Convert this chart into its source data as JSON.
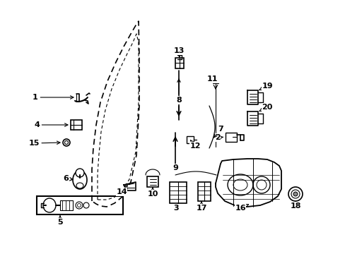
{
  "bg_color": "#ffffff",
  "line_color": "#000000",
  "fig_width": 4.89,
  "fig_height": 3.6,
  "dpi": 100,
  "door_outer": {
    "x": [
      195,
      192,
      188,
      182,
      175,
      168,
      162,
      158,
      156,
      156,
      158,
      163,
      170,
      178,
      188,
      198,
      208,
      218,
      226,
      230,
      232,
      232,
      230,
      226,
      218,
      208,
      198,
      195
    ],
    "y": [
      290,
      282,
      272,
      260,
      245,
      228,
      210,
      190,
      168,
      148,
      132,
      118,
      108,
      100,
      95,
      93,
      93,
      95,
      100,
      107,
      115,
      200,
      210,
      220,
      228,
      238,
      248,
      260
    ]
  },
  "door_inner": {
    "x": [
      195,
      192,
      188,
      183,
      177,
      171,
      165,
      162,
      160,
      160,
      162,
      167,
      173,
      180,
      189,
      198,
      207,
      216,
      223,
      226,
      228,
      228,
      226,
      223,
      216,
      207,
      198,
      195
    ],
    "y": [
      286,
      278,
      269,
      257,
      243,
      226,
      210,
      192,
      172,
      154,
      138,
      125,
      115,
      108,
      103,
      101,
      101,
      103,
      108,
      114,
      121,
      198,
      208,
      217,
      225,
      234,
      244,
      257
    ]
  },
  "label_positions": {
    "1": [
      50,
      138,
      105,
      138
    ],
    "2": [
      306,
      195,
      320,
      195
    ],
    "3": [
      249,
      283,
      249,
      275
    ],
    "4": [
      50,
      177,
      100,
      177
    ],
    "5": [
      85,
      310,
      85,
      315
    ],
    "6": [
      95,
      255,
      110,
      258
    ],
    "7": [
      310,
      185,
      305,
      200
    ],
    "8": [
      252,
      148,
      252,
      160
    ],
    "9": [
      248,
      228,
      248,
      220
    ],
    "10": [
      214,
      265,
      214,
      258
    ],
    "11": [
      301,
      118,
      305,
      130
    ],
    "12": [
      278,
      200,
      272,
      197
    ],
    "13": [
      252,
      68,
      252,
      82
    ],
    "14": [
      173,
      258,
      180,
      252
    ],
    "15": [
      50,
      205,
      88,
      205
    ],
    "16": [
      340,
      283,
      340,
      278
    ],
    "17": [
      285,
      283,
      285,
      278
    ],
    "18": [
      415,
      278,
      415,
      272
    ],
    "19": [
      365,
      132,
      355,
      138
    ],
    "20": [
      365,
      160,
      355,
      165
    ]
  }
}
